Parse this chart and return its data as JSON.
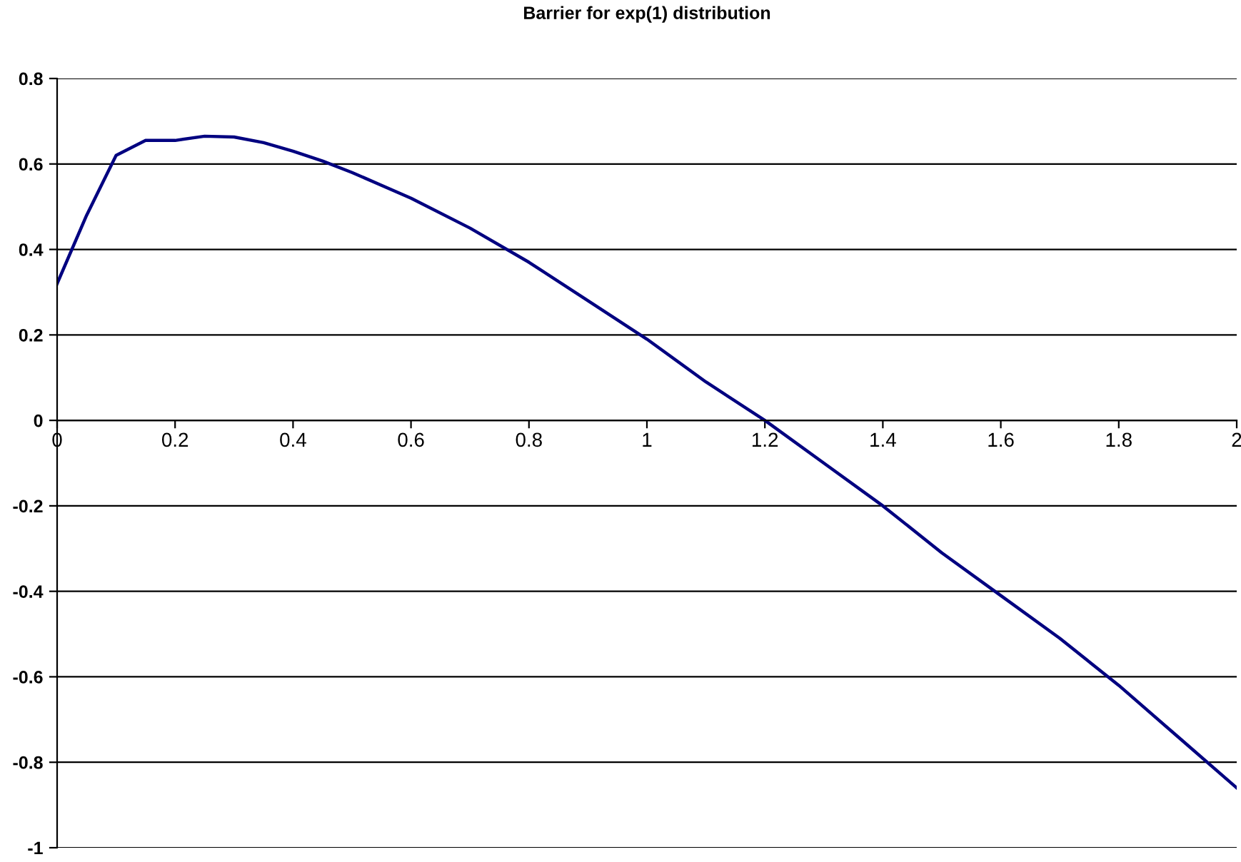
{
  "chart_data": {
    "type": "line",
    "title": "Barrier for exp(1) distribution",
    "x": [
      0,
      0.05,
      0.1,
      0.15,
      0.2,
      0.25,
      0.3,
      0.35,
      0.4,
      0.45,
      0.5,
      0.6,
      0.7,
      0.8,
      0.9,
      1.0,
      1.1,
      1.2,
      1.3,
      1.4,
      1.5,
      1.6,
      1.7,
      1.8,
      1.9,
      2.0
    ],
    "series": [
      {
        "color": "#000080",
        "values": [
          0.32,
          0.48,
          0.62,
          0.655,
          0.655,
          0.665,
          0.663,
          0.65,
          0.63,
          0.607,
          0.58,
          0.52,
          0.45,
          0.37,
          0.28,
          0.19,
          0.09,
          0.0,
          -0.1,
          -0.2,
          -0.31,
          -0.41,
          -0.51,
          -0.62,
          -0.74,
          -0.86
        ]
      }
    ],
    "xlim": [
      0,
      2
    ],
    "xticks": [
      0,
      0.2,
      0.4,
      0.6,
      0.8,
      1,
      1.2,
      1.4,
      1.6,
      1.8,
      2
    ],
    "ylim": [
      -1,
      0.8
    ],
    "yticks": [
      -1,
      -0.8,
      -0.6,
      -0.4,
      -0.2,
      0,
      0.2,
      0.4,
      0.6,
      0.8
    ],
    "grid": "y",
    "legend": false,
    "marker": "none",
    "line_style": "solid"
  }
}
